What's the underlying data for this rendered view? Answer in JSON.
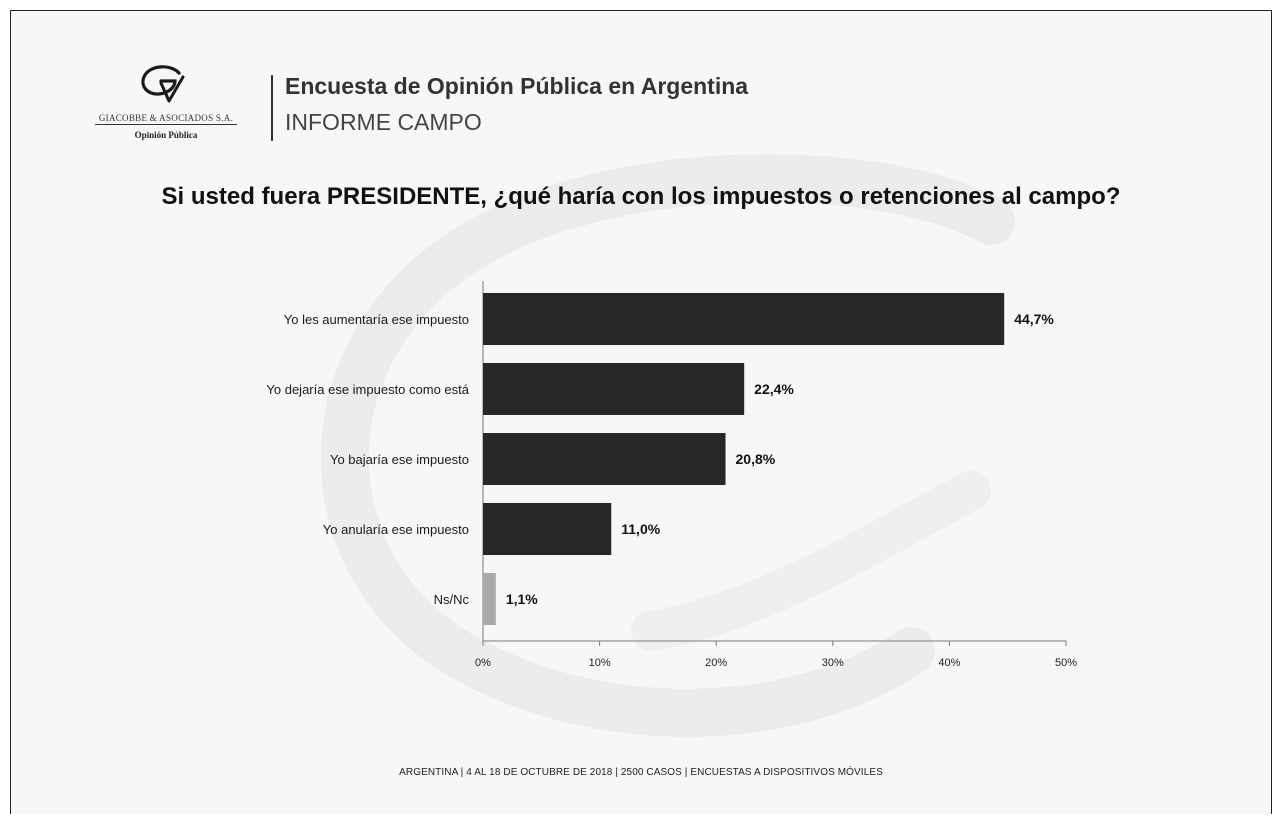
{
  "logo": {
    "firm_name": "GIACOBBE & ASOCIADOS S.A.",
    "tagline": "Opinión Pública"
  },
  "header": {
    "title": "Encuesta de Opinión Pública en Argentina",
    "subtitle": "INFORME CAMPO"
  },
  "footer": {
    "text": "ARGENTINA | 4 AL 18 DE OCTUBRE DE 2018 | 2500 CASOS | ENCUESTAS A DISPOSITIVOS MÓVILES"
  },
  "colors": {
    "bar_main": "#282828",
    "bar_other": "#a9a9a9",
    "background": "#f7f7f7"
  },
  "chart_data": {
    "type": "bar",
    "orientation": "horizontal",
    "title": "Si usted fuera PRESIDENTE, ¿qué haría con los impuestos o retenciones al campo?",
    "categories": [
      "Yo les aumentaría ese impuesto",
      "Yo dejaría ese impuesto como está",
      "Yo bajaría ese impuesto",
      "Yo anularía ese impuesto",
      "Ns/Nc"
    ],
    "values": [
      44.7,
      22.4,
      20.8,
      11.0,
      1.1
    ],
    "value_labels": [
      "44,7%",
      "22,4%",
      "20,8%",
      "11,0%",
      "1,1%"
    ],
    "xlim": [
      0,
      50
    ],
    "xticks": [
      0,
      10,
      20,
      30,
      40,
      50
    ],
    "xtick_labels": [
      "0%",
      "10%",
      "20%",
      "30%",
      "40%",
      "50%"
    ],
    "xlabel": "",
    "ylabel": "",
    "grid": false,
    "legend": "none"
  }
}
